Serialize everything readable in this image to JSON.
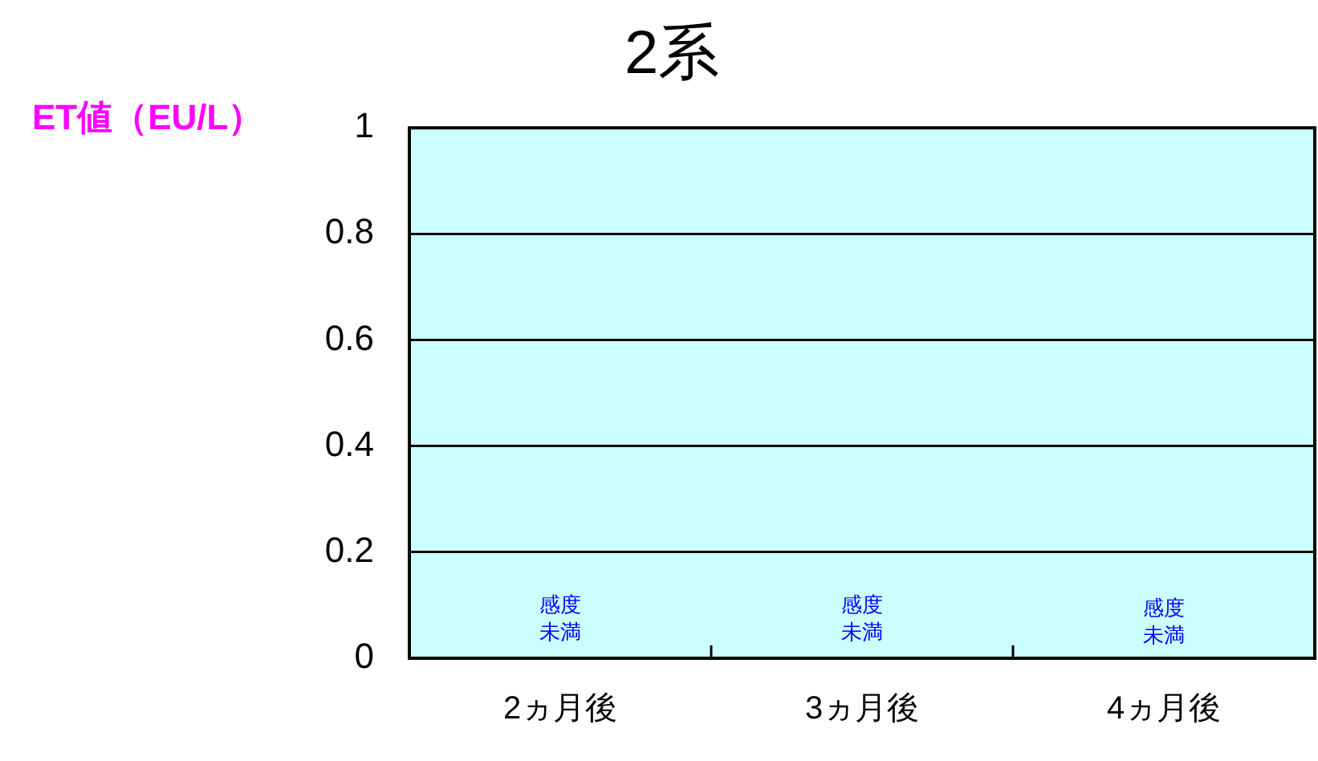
{
  "chart_data": {
    "type": "bar",
    "title": "2系",
    "ylabel": "ET値（EU/L）",
    "categories": [
      "2ヵ月後",
      "3ヵ月後",
      "4ヵ月後"
    ],
    "values": [
      null,
      null,
      null
    ],
    "ylim": [
      0,
      1
    ],
    "yticks": [
      0,
      0.2,
      0.4,
      0.6,
      0.8,
      1
    ],
    "grid": "y",
    "legend": false,
    "annotations": [
      "感度未満",
      "感度未満",
      "感度未満"
    ]
  }
}
